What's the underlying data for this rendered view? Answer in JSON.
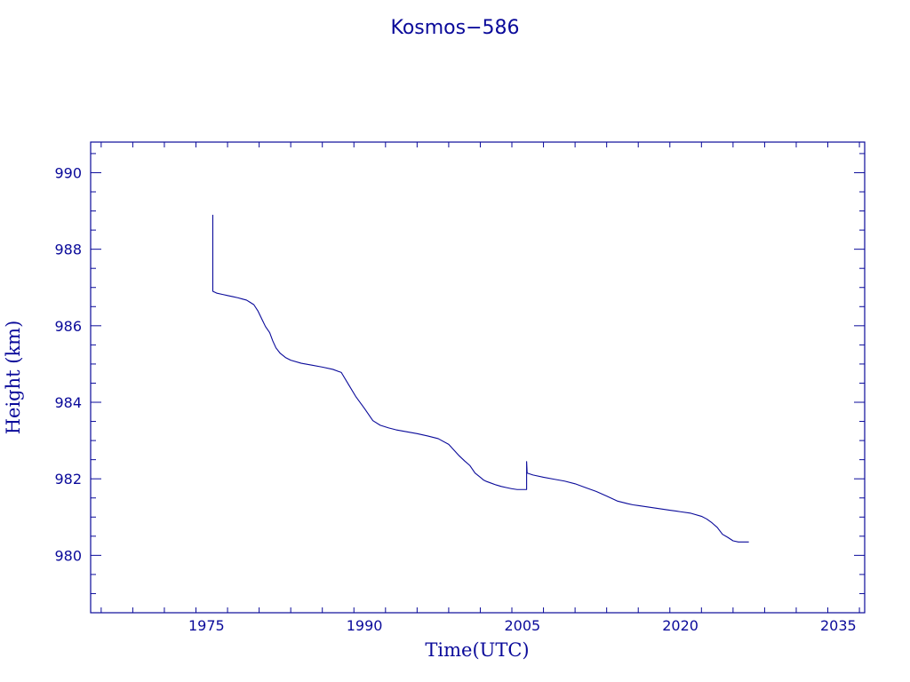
{
  "chart_data": {
    "type": "line",
    "title": "Kosmos−586",
    "xlabel": "Time(UTC)",
    "ylabel": "Height (km)",
    "xlim": [
      1964,
      2037.5
    ],
    "ylim": [
      978.5,
      990.8
    ],
    "xticks": [
      1975,
      1990,
      2005,
      2020,
      2035
    ],
    "yticks": [
      980,
      982,
      984,
      986,
      988,
      990
    ],
    "x_minor_step": 3,
    "y_minor_step": 0.5,
    "grid": false,
    "legend": "none",
    "color": "#0a0a9a",
    "series": [
      {
        "x": [
          1975.6,
          1975.6,
          1976.0,
          1976.5,
          1977.0,
          1977.5,
          1978.0,
          1978.4,
          1978.8,
          1979.1,
          1979.5,
          1979.9,
          1980.3,
          1980.6,
          1981.0,
          1981.3,
          1981.6,
          1982.0,
          1982.5,
          1983.0,
          1984.0,
          1985.0,
          1986.0,
          1987.0,
          1987.8,
          1988.5,
          1989.2,
          1990.0,
          1990.8,
          1991.5,
          1992.3,
          1993.0,
          1994.0,
          1995.0,
          1996.0,
          1997.0,
          1998.0,
          1998.5,
          1999.0,
          1999.5,
          2000.0,
          2000.5,
          2001.0,
          2001.3,
          2001.6,
          2002.0,
          2002.5,
          2003.0,
          2003.5,
          2004.0,
          2004.5,
          2005.0,
          2005.35,
          2005.4,
          2005.4,
          2005.45,
          2006.0,
          2007.0,
          2008.0,
          2009.0,
          2010.0,
          2011.0,
          2012.0,
          2013.0,
          2014.0,
          2015.0,
          2015.5,
          2016.0,
          2017.0,
          2018.0,
          2019.0,
          2020.0,
          2021.0,
          2022.0,
          2022.5,
          2023.0,
          2023.5,
          2024.0,
          2024.5,
          2025.0,
          2025.5,
          2026.0,
          2026.5
        ],
        "y": [
          988.9,
          986.9,
          986.85,
          986.82,
          986.79,
          986.76,
          986.73,
          986.7,
          986.67,
          986.62,
          986.55,
          986.38,
          986.15,
          985.98,
          985.82,
          985.6,
          985.42,
          985.28,
          985.17,
          985.1,
          985.02,
          984.97,
          984.92,
          984.86,
          984.78,
          984.46,
          984.14,
          983.84,
          983.52,
          983.4,
          983.33,
          983.28,
          983.23,
          983.18,
          983.12,
          983.05,
          982.9,
          982.75,
          982.6,
          982.47,
          982.35,
          982.15,
          982.04,
          981.97,
          981.93,
          981.89,
          981.84,
          981.8,
          981.77,
          981.74,
          981.72,
          981.72,
          981.72,
          981.72,
          982.45,
          982.15,
          982.1,
          982.04,
          981.99,
          981.94,
          981.87,
          981.77,
          981.67,
          981.55,
          981.42,
          981.35,
          981.32,
          981.3,
          981.26,
          981.22,
          981.18,
          981.14,
          981.1,
          981.02,
          980.95,
          980.85,
          980.73,
          980.55,
          980.47,
          980.38,
          980.35,
          980.35,
          980.35
        ]
      }
    ]
  }
}
